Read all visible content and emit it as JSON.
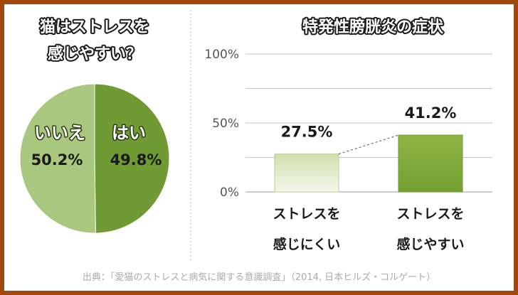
{
  "frame_color": "#a0480e",
  "title_color": "#ffffff",
  "title_stroke": "#1a1a1a",
  "chart_data": [
    {
      "type": "pie",
      "title_lines": [
        "猫はストレスを",
        "感じやすい？"
      ],
      "slices": [
        {
          "label": "はい",
          "value": 49.8,
          "value_label": "49.8%",
          "color": "#6f9a34"
        },
        {
          "label": "いいえ",
          "value": 50.2,
          "value_label": "50.2%",
          "color": "#a9c77e"
        }
      ]
    },
    {
      "type": "bar",
      "title": "特発性膀胱炎の症状",
      "categories": [
        {
          "line1": "ストレスを",
          "line2": "感じにくい"
        },
        {
          "line1": "ストレスを",
          "line2": "感じやすい"
        }
      ],
      "values": [
        27.5,
        41.2
      ],
      "value_labels": [
        "27.5%",
        "41.2%"
      ],
      "colors": [
        "#cfe0ad",
        "#8fb445"
      ],
      "ylim": [
        0,
        100
      ],
      "yticks": [
        {
          "value": 0,
          "label": "0%"
        },
        {
          "value": 50,
          "label": "50%"
        },
        {
          "value": 100,
          "label": "100%"
        }
      ],
      "grid": true
    }
  ],
  "source": "出典：「愛猫のストレスと病気に関する意識調査」（2014, 日本ヒルズ・コルゲート）"
}
